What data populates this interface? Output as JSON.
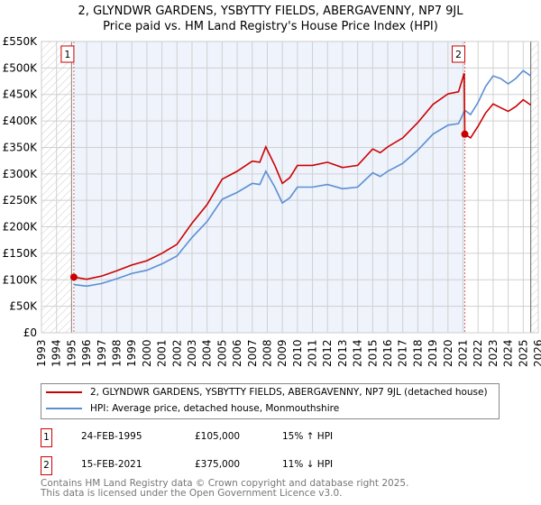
{
  "chart_data": {
    "type": "line",
    "title": "2, GLYNDWR GARDENS, YSBYTTY FIELDS, ABERGAVENNY, NP7 9JL",
    "subtitle": "Price paid vs. HM Land Registry's House Price Index (HPI)",
    "xlim": [
      1993,
      2026
    ],
    "ylim": [
      0,
      550000
    ],
    "x_ticks": [
      "1993",
      "1994",
      "1995",
      "1996",
      "1997",
      "1998",
      "1999",
      "2000",
      "2001",
      "2002",
      "2003",
      "2004",
      "2005",
      "2006",
      "2007",
      "2008",
      "2009",
      "2010",
      "2011",
      "2012",
      "2013",
      "2014",
      "2015",
      "2016",
      "2017",
      "2018",
      "2019",
      "2020",
      "2021",
      "2022",
      "2023",
      "2024",
      "2025",
      "2026"
    ],
    "y_ticks": [
      {
        "v": 0,
        "label": "£0"
      },
      {
        "v": 50000,
        "label": "£50K"
      },
      {
        "v": 100000,
        "label": "£100K"
      },
      {
        "v": 150000,
        "label": "£150K"
      },
      {
        "v": 200000,
        "label": "£200K"
      },
      {
        "v": 250000,
        "label": "£250K"
      },
      {
        "v": 300000,
        "label": "£300K"
      },
      {
        "v": 350000,
        "label": "£350K"
      },
      {
        "v": 400000,
        "label": "£400K"
      },
      {
        "v": 450000,
        "label": "£450K"
      },
      {
        "v": 500000,
        "label": "£500K"
      },
      {
        "v": 550000,
        "label": "£550K"
      }
    ],
    "grid": true,
    "series": [
      {
        "name": "2, GLYNDWR GARDENS, YSBYTTY FIELDS, ABERGAVENNY, NP7 9JL (detached house)",
        "color": "#cc0000",
        "x": [
          1995.15,
          1996,
          1997,
          1998,
          1999,
          2000,
          2001,
          2002,
          2003,
          2004,
          2005,
          2006,
          2007,
          2007.5,
          2007.9,
          2008.5,
          2009,
          2009.5,
          2010,
          2011,
          2012,
          2013,
          2014,
          2015,
          2015.5,
          2016,
          2017,
          2018,
          2019,
          2020,
          2020.7,
          2021.08,
          2021.12,
          2021.5,
          2022,
          2022.5,
          2023,
          2023.5,
          2024,
          2024.5,
          2025,
          2025.5
        ],
        "y": [
          105000,
          101000,
          107000,
          117000,
          128000,
          136000,
          150000,
          167000,
          207000,
          242000,
          290000,
          305000,
          324000,
          322000,
          351000,
          316000,
          282000,
          293000,
          316000,
          316000,
          322000,
          312000,
          316000,
          347000,
          340000,
          351000,
          368000,
          397000,
          431000,
          451000,
          455000,
          490000,
          375000,
          368000,
          390000,
          415000,
          432000,
          425000,
          418000,
          427000,
          440000,
          430000
        ]
      },
      {
        "name": "HPI: Average price, detached house, Monmouthshire",
        "color": "#5b8fd4",
        "x": [
          1995.15,
          1996,
          1997,
          1998,
          1999,
          2000,
          2001,
          2002,
          2003,
          2004,
          2005,
          2006,
          2007,
          2007.5,
          2007.9,
          2008.5,
          2009,
          2009.5,
          2010,
          2011,
          2012,
          2013,
          2014,
          2015,
          2015.5,
          2016,
          2017,
          2018,
          2019,
          2020,
          2020.7,
          2021.12,
          2021.5,
          2022,
          2022.5,
          2023,
          2023.5,
          2024,
          2024.5,
          2025,
          2025.5
        ],
        "y": [
          91000,
          88000,
          93000,
          102000,
          112000,
          118000,
          130000,
          145000,
          180000,
          210000,
          252000,
          265000,
          282000,
          280000,
          305000,
          275000,
          245000,
          255000,
          275000,
          275000,
          280000,
          272000,
          275000,
          302000,
          295000,
          305000,
          320000,
          345000,
          375000,
          392000,
          395000,
          420000,
          412000,
          435000,
          465000,
          485000,
          480000,
          470000,
          480000,
          495000,
          485000
        ]
      }
    ],
    "annotations": [
      {
        "label": "1",
        "x": 1995.15,
        "y": 105000
      },
      {
        "label": "2",
        "x": 2021.12,
        "y": 375000
      }
    ]
  },
  "legend": {
    "red": "2, GLYNDWR GARDENS, YSBYTTY FIELDS, ABERGAVENNY, NP7 9JL (detached house)",
    "blue": "HPI: Average price, detached house, Monmouthshire"
  },
  "sales": [
    {
      "num": "1",
      "date": "24-FEB-1995",
      "price": "£105,000",
      "hpi": "15% ↑ HPI"
    },
    {
      "num": "2",
      "date": "15-FEB-2021",
      "price": "£375,000",
      "hpi": "11% ↓ HPI"
    }
  ],
  "footer": {
    "line1": "Contains HM Land Registry data © Crown copyright and database right 2025.",
    "line2": "This data is licensed under the Open Government Licence v3.0."
  }
}
